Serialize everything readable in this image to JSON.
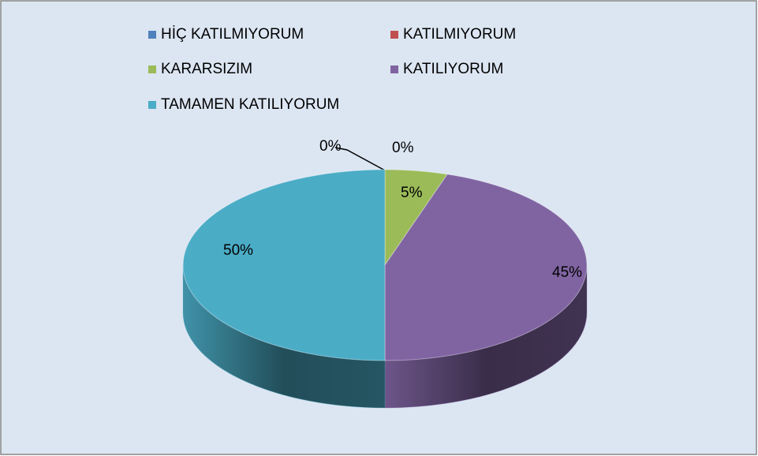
{
  "chart_data": {
    "type": "pie3d",
    "categories": [
      "HİÇ KATILMIYORUM",
      "KATILMIYORUM",
      "KARARSIZIM",
      "KATILIYORUM",
      "TAMAMEN KATILIYORUM"
    ],
    "values": [
      0,
      0,
      5,
      45,
      50
    ],
    "value_labels": [
      "0%",
      "0%",
      "5%",
      "45%",
      "50%"
    ],
    "colors": [
      "#4f81bd",
      "#c0504d",
      "#9bbb59",
      "#8064a2",
      "#4bacc6"
    ],
    "legend": "top"
  }
}
